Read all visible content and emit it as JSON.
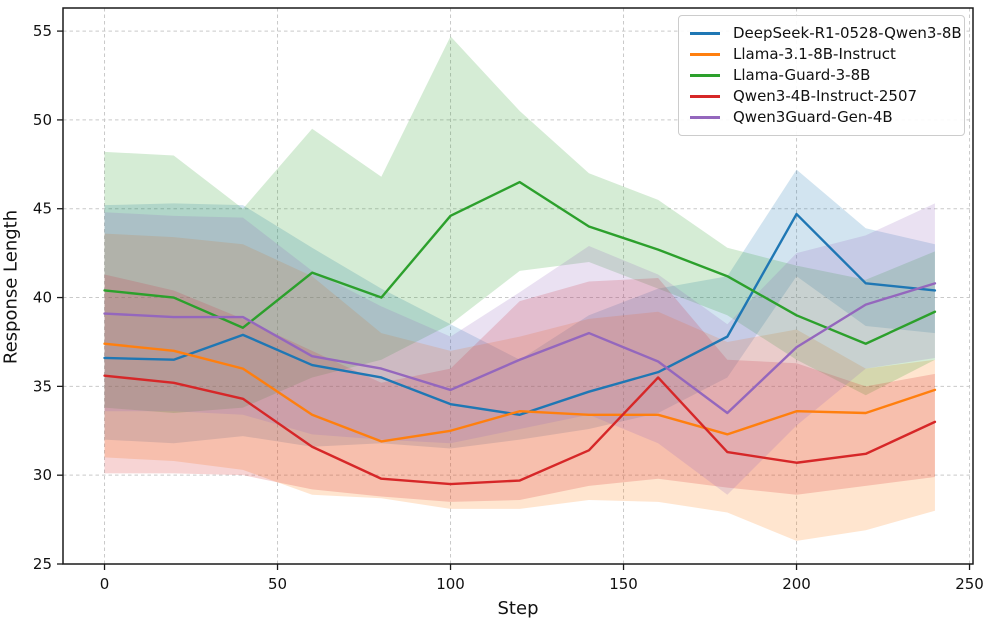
{
  "figure": {
    "kind": "matplotlib line chart with confidence bands",
    "background": "#ffffff",
    "spine_color": "#1a1a1a",
    "grid_color": "#c9c9c9",
    "text_color": "#111111"
  },
  "chart_data": {
    "type": "line",
    "title": "",
    "xlabel": "Step",
    "ylabel": "Response Length",
    "x": [
      0,
      20,
      40,
      60,
      80,
      100,
      120,
      140,
      160,
      180,
      200,
      220,
      240
    ],
    "xticks": [
      0,
      50,
      100,
      150,
      200,
      250
    ],
    "yticks": [
      25,
      30,
      35,
      40,
      45,
      50,
      55
    ],
    "xlim": [
      -12,
      251
    ],
    "ylim": [
      25,
      56.3
    ],
    "grid": true,
    "grid_style": "dashed",
    "legend_position": "upper right",
    "band_alpha": 0.2,
    "series": [
      {
        "name": "DeepSeek-R1-0528-Qwen3-8B",
        "color": "#1f77b4",
        "values": [
          36.6,
          36.5,
          37.9,
          36.2,
          35.5,
          34.0,
          33.4,
          34.7,
          35.8,
          37.8,
          44.7,
          40.8,
          40.4
        ],
        "band_upper": [
          45.2,
          45.3,
          45.2,
          42.8,
          40.5,
          38.5,
          36.5,
          39.0,
          40.5,
          41.2,
          47.2,
          43.9,
          43.0
        ],
        "band_lower": [
          32.0,
          31.8,
          32.2,
          31.6,
          31.8,
          31.5,
          32.0,
          32.6,
          33.5,
          35.5,
          41.2,
          38.4,
          38.0
        ]
      },
      {
        "name": "Llama-3.1-8B-Instruct",
        "color": "#ff7f0e",
        "values": [
          37.4,
          37.0,
          36.0,
          33.4,
          31.9,
          32.5,
          33.6,
          33.4,
          33.4,
          32.3,
          33.6,
          33.5,
          34.8
        ],
        "band_upper": [
          43.6,
          43.4,
          43.0,
          41.2,
          38.0,
          37.0,
          37.8,
          38.8,
          39.2,
          37.5,
          38.2,
          36.0,
          36.5
        ],
        "band_lower": [
          31.0,
          30.8,
          30.3,
          28.9,
          28.7,
          28.1,
          28.1,
          28.6,
          28.5,
          27.9,
          26.3,
          26.9,
          28.0
        ]
      },
      {
        "name": "Llama-Guard-3-8B",
        "color": "#2ca02c",
        "values": [
          40.4,
          40.0,
          38.3,
          41.4,
          40.0,
          44.6,
          46.5,
          44.0,
          42.7,
          41.2,
          39.0,
          37.4,
          39.2
        ],
        "band_upper": [
          48.2,
          48.0,
          45.0,
          49.5,
          46.8,
          54.7,
          50.5,
          47.0,
          45.5,
          42.8,
          41.8,
          41.0,
          42.6
        ],
        "band_lower": [
          33.8,
          33.5,
          33.8,
          35.5,
          36.5,
          38.5,
          41.5,
          42.0,
          40.5,
          39.0,
          36.5,
          34.5,
          36.5
        ]
      },
      {
        "name": "Qwen3-4B-Instruct-2507",
        "color": "#d62728",
        "values": [
          35.6,
          35.2,
          34.3,
          31.6,
          29.8,
          29.5,
          29.7,
          31.4,
          35.5,
          31.3,
          30.7,
          31.2,
          33.0
        ],
        "band_upper": [
          41.3,
          40.4,
          38.8,
          37.0,
          35.2,
          36.0,
          39.8,
          40.9,
          41.1,
          36.5,
          36.3,
          35.0,
          35.7
        ],
        "band_lower": [
          30.1,
          30.1,
          30.0,
          29.2,
          28.8,
          28.5,
          28.6,
          29.4,
          29.8,
          29.3,
          28.9,
          29.4,
          29.9
        ]
      },
      {
        "name": "Qwen3Guard-Gen-4B",
        "color": "#9467bd",
        "values": [
          39.1,
          38.9,
          38.9,
          36.7,
          36.0,
          34.8,
          36.5,
          38.0,
          36.4,
          33.5,
          37.2,
          39.6,
          40.8
        ],
        "band_upper": [
          44.8,
          44.6,
          44.5,
          41.5,
          39.5,
          37.8,
          40.3,
          42.9,
          41.3,
          38.5,
          42.5,
          43.5,
          45.3
        ],
        "band_lower": [
          33.6,
          33.6,
          33.4,
          32.3,
          32.0,
          31.8,
          32.6,
          33.4,
          31.8,
          28.9,
          32.8,
          36.0,
          36.6
        ]
      }
    ]
  }
}
